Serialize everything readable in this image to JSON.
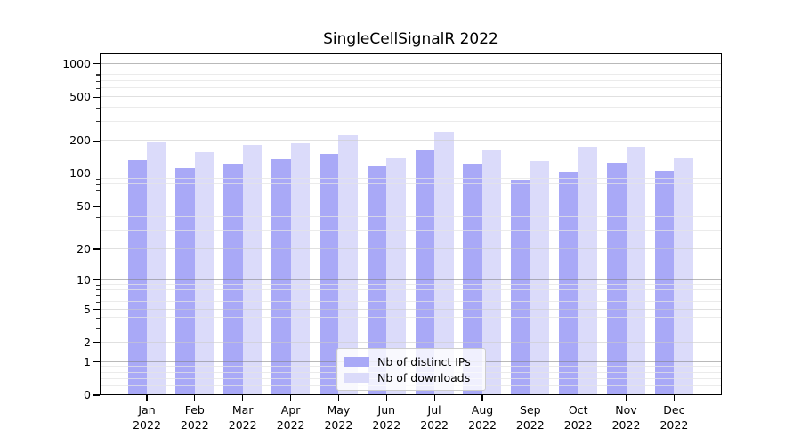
{
  "chart_data": {
    "type": "bar",
    "title": "SingleCellSignalR 2022",
    "categories": [
      "Jan 2022",
      "Feb 2022",
      "Mar 2022",
      "Apr 2022",
      "May 2022",
      "Jun 2022",
      "Jul 2022",
      "Aug 2022",
      "Sep 2022",
      "Oct 2022",
      "Nov 2022",
      "Dec 2022"
    ],
    "months": [
      "Jan",
      "Feb",
      "Mar",
      "Apr",
      "May",
      "Jun",
      "Jul",
      "Aug",
      "Sep",
      "Oct",
      "Nov",
      "Dec"
    ],
    "year_label": "2022",
    "series": [
      {
        "name": "Nb of distinct IPs",
        "color": "#a9a9f7",
        "values": [
          134,
          114,
          123,
          135,
          153,
          118,
          166,
          124,
          89,
          104,
          127,
          107
        ]
      },
      {
        "name": "Nb of downloads",
        "color": "#dbdbfa",
        "values": [
          194,
          158,
          183,
          192,
          224,
          140,
          241,
          167,
          132,
          177,
          178,
          141
        ]
      }
    ],
    "yscale": "log10(value+1)",
    "ylim": [
      0,
      1270
    ],
    "yticks": [
      0,
      1,
      2,
      5,
      10,
      20,
      50,
      100,
      200,
      500,
      1000
    ],
    "minor_yticks": [
      0.2,
      0.4,
      0.6,
      0.8,
      3,
      4,
      6,
      7,
      8,
      9,
      30,
      40,
      60,
      70,
      80,
      90,
      300,
      400,
      600,
      700,
      800,
      900
    ],
    "emphasized_gridlines": [
      1,
      10,
      100,
      1000
    ],
    "grid": true,
    "legend_position": "bottom-center",
    "colors": {
      "bar_ips": "#a9a9f7",
      "bar_downloads": "#dbdbfa",
      "axis": "#000000"
    }
  }
}
